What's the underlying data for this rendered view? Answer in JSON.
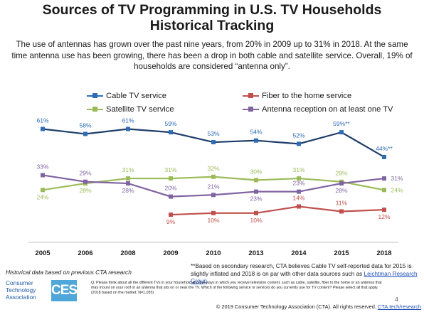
{
  "title_line1": "Sources of TV Programming in U.S. TV Households",
  "title_line2": "Historical Tracking",
  "subtitle": "The use of antennas has grown over the past nine years, from 20% in 2009 up to 31% in 2018. At the same time antenna use has been growing, there has been a drop in both cable and satellite service. Overall, 19% of households are considered “antenna only”.",
  "legend": {
    "cable": "Cable TV service",
    "satellite": "Satellite TV service",
    "fiber": "Fiber to the home service",
    "antenna": "Antenna reception on at least one TV"
  },
  "chart_data": {
    "type": "line",
    "x": [
      "2005",
      "2006",
      "2008",
      "2009",
      "2010",
      "2013",
      "2014",
      "2015",
      "2018"
    ],
    "ylim": [
      0,
      70
    ],
    "grid": false,
    "legend_position": "top",
    "series": [
      {
        "name": "Cable TV service",
        "color": "#1f3d6b",
        "marker": "square",
        "values": [
          61,
          58,
          61,
          59,
          53,
          54,
          52,
          59,
          44
        ],
        "labels": [
          "61%",
          "58%",
          "61%",
          "59%",
          "53%",
          "54%",
          "52%",
          "59%**",
          "44%**"
        ]
      },
      {
        "name": "Fiber to the home service",
        "color": "#c0504d",
        "marker": "square",
        "values": [
          null,
          null,
          null,
          9,
          10,
          10,
          14,
          11,
          12
        ],
        "labels": [
          "",
          "",
          "",
          "9%",
          "10%",
          "10%",
          "14%",
          "11%",
          "12%"
        ]
      },
      {
        "name": "Satellite TV service",
        "color": "#9bbb59",
        "marker": "square",
        "values": [
          24,
          28,
          31,
          31,
          32,
          30,
          31,
          29,
          24
        ],
        "labels": [
          "24%",
          "28%",
          "31%",
          "31%",
          "32%",
          "30%",
          "31%",
          "29%",
          "24%"
        ]
      },
      {
        "name": "Antenna reception on at least one TV",
        "color": "#8064a2",
        "marker": "square",
        "values": [
          33,
          29,
          28,
          20,
          21,
          23,
          23,
          28,
          31
        ],
        "labels": [
          "33%",
          "29%",
          "28%",
          "20%",
          "21%",
          "23%",
          "23%",
          "28%",
          "31%"
        ]
      }
    ]
  },
  "notes": {
    "historical": "Historical data based on previous CTA research",
    "footnote": "**Based on secondary research, CTA believes Cable TV self-reported data for 2015 is slightly inflated and 2018 is on par with other data sources such as",
    "footnote_link": "Leichtman Research Group",
    "question": "Q. Please think about all the different TVs in your household and the ways in which you receive television content, such as cable, satellite, fiber to the home or an antenna that may mount on your roof or an antenna that sits on or near the TV. Which of the following service or services do you currently use for TV content? Please select all that apply.",
    "base": "(2018 based on the market, N=1,035)",
    "page": "4",
    "copyright": "© 2019 Consumer Technology Association (CTA). All rights reserved.",
    "copyright_link": "CTA.tech/research"
  },
  "logo": {
    "line1": "Consumer",
    "line2": "Technology",
    "line3": "Association",
    "ces": "CES"
  }
}
